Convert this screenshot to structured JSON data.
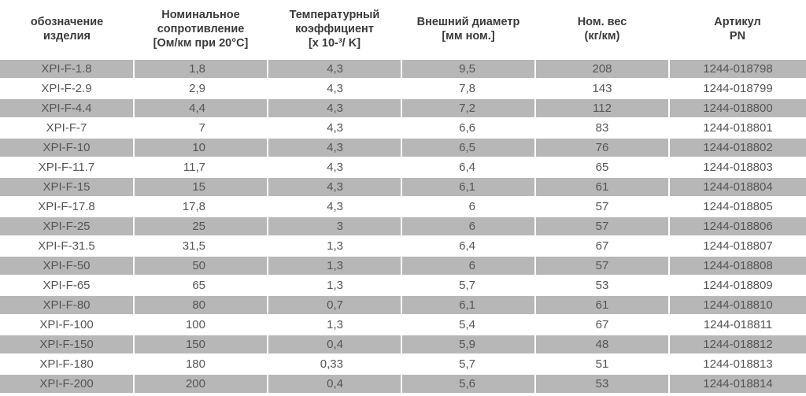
{
  "table": {
    "header": [
      [
        "обозначение",
        "изделия"
      ],
      [
        "Номинальное",
        "сопротивление",
        "[Ом/км при 20°C]"
      ],
      [
        "Температурный",
        "коэффициент",
        "[x 10-³/ K]"
      ],
      [
        "Внешний диаметр",
        "[мм ном.]"
      ],
      [
        "Ном. вес",
        "(кг/км)"
      ],
      [
        "Артикул",
        "PN"
      ]
    ],
    "rows": [
      [
        "XPI-F-1.8",
        "1,8",
        "4,3",
        "9,5",
        "208",
        "1244-018798"
      ],
      [
        "XPI-F-2.9",
        "2,9",
        "4,3",
        "7,8",
        "143",
        "1244-018799"
      ],
      [
        "XPI-F-4.4",
        "4,4",
        "4,3",
        "7,2",
        "112",
        "1244-018800"
      ],
      [
        "XPI-F-7",
        "7",
        "4,3",
        "6,6",
        "83",
        "1244-018801"
      ],
      [
        "XPI-F-10",
        "10",
        "4,3",
        "6,5",
        "76",
        "1244-018802"
      ],
      [
        "XPI-F-11.7",
        "11,7",
        "4,3",
        "6,4",
        "65",
        "1244-018803"
      ],
      [
        "XPI-F-15",
        "15",
        "4,3",
        "6,1",
        "61",
        "1244-018804"
      ],
      [
        "XPI-F-17.8",
        "17,8",
        "4,3",
        "6",
        "57",
        "1244-018805"
      ],
      [
        "XPI-F-25",
        "25",
        "3",
        "6",
        "57",
        "1244-018806"
      ],
      [
        "XPI-F-31.5",
        "31,5",
        "1,3",
        "6,4",
        "67",
        "1244-018807"
      ],
      [
        "XPI-F-50",
        "50",
        "1,3",
        "6",
        "57",
        "1244-018808"
      ],
      [
        "XPI-F-65",
        "65",
        "1,3",
        "5,7",
        "53",
        "1244-018809"
      ],
      [
        "XPI-F-80",
        "80",
        "0,7",
        "6,1",
        "61",
        "1244-018810"
      ],
      [
        "XPI-F-100",
        "100",
        "1,3",
        "5,4",
        "67",
        "1244-018811"
      ],
      [
        "XPI-F-150",
        "150",
        "0,4",
        "5,9",
        "48",
        "1244-018812"
      ],
      [
        "XPI-F-180",
        "180",
        "0,33",
        "5,7",
        "51",
        "1244-018813"
      ],
      [
        "XPI-F-200",
        "200",
        "0,4",
        "5,6",
        "53",
        "1244-018814"
      ]
    ]
  }
}
